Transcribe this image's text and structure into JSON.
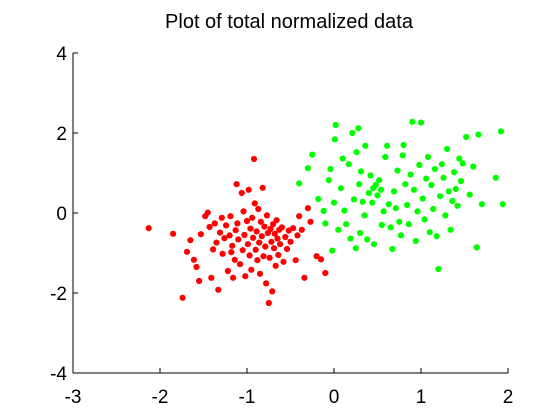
{
  "chart_data": {
    "type": "scatter",
    "title": "Plot of total normalized data",
    "xlabel": "",
    "ylabel": "",
    "xlim": [
      -3,
      2
    ],
    "ylim": [
      -4,
      4
    ],
    "x_ticks": [
      -3,
      -2,
      -1,
      0,
      1,
      2
    ],
    "y_ticks": [
      -4,
      -2,
      0,
      2,
      4
    ],
    "x_tick_labels": [
      "-3",
      "-2",
      "-1",
      "0",
      "1",
      "2"
    ],
    "y_tick_labels": [
      "-4",
      "-2",
      "0",
      "2",
      "4"
    ],
    "grid": false,
    "series": [
      {
        "color": "#ff0000",
        "points": [
          [
            -2.13,
            -0.38
          ],
          [
            -1.85,
            -0.52
          ],
          [
            -1.74,
            -2.12
          ],
          [
            -1.69,
            -0.97
          ],
          [
            -1.65,
            -0.68
          ],
          [
            -1.61,
            -1.17
          ],
          [
            -1.58,
            -1.35
          ],
          [
            -1.53,
            -0.53
          ],
          [
            -1.48,
            -0.08
          ],
          [
            -1.45,
            0.01
          ],
          [
            -1.43,
            -0.35
          ],
          [
            -1.41,
            -1.62
          ],
          [
            -1.39,
            -0.91
          ],
          [
            -1.37,
            -0.26
          ],
          [
            -1.35,
            -0.74
          ],
          [
            -1.33,
            -1.92
          ],
          [
            -1.31,
            -0.49
          ],
          [
            -1.29,
            -0.12
          ],
          [
            -1.28,
            -1.02
          ],
          [
            -1.26,
            -0.63
          ],
          [
            -1.24,
            -0.31
          ],
          [
            -1.22,
            -1.45
          ],
          [
            -1.2,
            -0.56
          ],
          [
            -1.19,
            -0.08
          ],
          [
            -1.17,
            -0.82
          ],
          [
            -1.16,
            -1.62
          ],
          [
            -1.14,
            -1.17
          ],
          [
            -1.13,
            -0.43
          ],
          [
            -1.12,
            0.72
          ],
          [
            -1.11,
            -0.26
          ],
          [
            -1.1,
            -0.66
          ],
          [
            -1.08,
            -1.28
          ],
          [
            -1.06,
            0.5
          ],
          [
            -1.05,
            -0.93
          ],
          [
            -1.04,
            0.04
          ],
          [
            -1.03,
            -0.55
          ],
          [
            -1.02,
            -1.58
          ],
          [
            -1.0,
            -0.2
          ],
          [
            -0.99,
            -0.78
          ],
          [
            -0.98,
            0.58
          ],
          [
            -0.97,
            -1.06
          ],
          [
            -0.96,
            -0.39
          ],
          [
            -0.95,
            -1.42
          ],
          [
            -0.94,
            -0.12
          ],
          [
            -0.93,
            -0.62
          ],
          [
            -0.92,
            1.35
          ],
          [
            -0.91,
            0.24
          ],
          [
            -0.9,
            -0.92
          ],
          [
            -0.89,
            -0.46
          ],
          [
            -0.88,
            -1.18
          ],
          [
            -0.87,
            0.1
          ],
          [
            -0.86,
            -0.74
          ],
          [
            -0.85,
            -1.52
          ],
          [
            -0.84,
            -0.22
          ],
          [
            -0.83,
            -0.58
          ],
          [
            -0.82,
            0.63
          ],
          [
            -0.81,
            -1.08
          ],
          [
            -0.8,
            -0.34
          ],
          [
            -0.79,
            -0.84
          ],
          [
            -0.78,
            -1.76
          ],
          [
            -0.77,
            -0.06
          ],
          [
            -0.76,
            -0.5
          ],
          [
            -0.75,
            -2.25
          ],
          [
            -0.74,
            -1.12
          ],
          [
            -0.73,
            -0.4
          ],
          [
            -0.72,
            -0.72
          ],
          [
            -0.71,
            -1.96
          ],
          [
            -0.7,
            -0.28
          ],
          [
            -0.69,
            -0.88
          ],
          [
            -0.68,
            -0.52
          ],
          [
            -0.67,
            -1.32
          ],
          [
            -0.66,
            -0.18
          ],
          [
            -0.65,
            -0.64
          ],
          [
            -0.64,
            -1.05
          ],
          [
            -0.63,
            -0.42
          ],
          [
            -0.62,
            -0.78
          ],
          [
            -0.6,
            -0.36
          ],
          [
            -0.58,
            -1.22
          ],
          [
            -0.56,
            -0.6
          ],
          [
            -0.54,
            -0.9
          ],
          [
            -0.52,
            -0.44
          ],
          [
            -0.5,
            -0.72
          ],
          [
            -0.47,
            -0.38
          ],
          [
            -0.44,
            -1.18
          ],
          [
            -0.42,
            -0.56
          ],
          [
            -0.4,
            -0.08
          ],
          [
            -0.37,
            -0.42
          ],
          [
            -0.34,
            -1.62
          ],
          [
            -0.3,
            0.12
          ],
          [
            -0.27,
            -0.22
          ],
          [
            -0.2,
            -1.08
          ],
          [
            -0.15,
            -1.16
          ],
          [
            -0.1,
            -1.5
          ],
          [
            -1.55,
            -1.7
          ],
          [
            -1.18,
            -0.98
          ]
        ]
      },
      {
        "color": "#00ff00",
        "points": [
          [
            -0.4,
            0.74
          ],
          [
            -0.3,
            1.12
          ],
          [
            -0.25,
            1.46
          ],
          [
            -0.18,
            0.35
          ],
          [
            -0.12,
            0.05
          ],
          [
            -0.1,
            -0.26
          ],
          [
            -0.06,
            0.82
          ],
          [
            -0.04,
            1.1
          ],
          [
            -0.02,
            -0.94
          ],
          [
            0.0,
            0.26
          ],
          [
            0.01,
            1.84
          ],
          [
            0.02,
            2.2
          ],
          [
            0.05,
            -0.42
          ],
          [
            0.08,
            0.62
          ],
          [
            0.1,
            1.36
          ],
          [
            0.12,
            0.06
          ],
          [
            0.14,
            -0.28
          ],
          [
            0.17,
            1.22
          ],
          [
            0.19,
            -0.64
          ],
          [
            0.21,
            2.0
          ],
          [
            0.23,
            0.34
          ],
          [
            0.25,
            -0.88
          ],
          [
            0.26,
            1.52
          ],
          [
            0.28,
            2.12
          ],
          [
            0.29,
            0.72
          ],
          [
            0.3,
            -0.5
          ],
          [
            0.31,
            1.04
          ],
          [
            0.33,
            0.28
          ],
          [
            0.35,
            -0.06
          ],
          [
            0.36,
            1.68
          ],
          [
            0.38,
            -0.66
          ],
          [
            0.4,
            0.5
          ],
          [
            0.42,
            0.94
          ],
          [
            0.44,
            0.26
          ],
          [
            0.45,
            0.62
          ],
          [
            0.46,
            -0.78
          ],
          [
            0.48,
            0.7
          ],
          [
            0.5,
            0.44
          ],
          [
            0.52,
            0.82
          ],
          [
            0.54,
            0.58
          ],
          [
            0.55,
            -0.3
          ],
          [
            0.57,
            0.04
          ],
          [
            0.59,
            1.4
          ],
          [
            0.61,
            1.68
          ],
          [
            0.63,
            0.22
          ],
          [
            0.65,
            -0.36
          ],
          [
            0.67,
            -0.9
          ],
          [
            0.69,
            0.54
          ],
          [
            0.71,
            0.12
          ],
          [
            0.73,
            1.06
          ],
          [
            0.75,
            -0.22
          ],
          [
            0.77,
            -0.56
          ],
          [
            0.79,
            1.44
          ],
          [
            0.8,
            1.7
          ],
          [
            0.82,
            0.72
          ],
          [
            0.84,
            0.2
          ],
          [
            0.86,
            -0.28
          ],
          [
            0.88,
            0.96
          ],
          [
            0.9,
            2.28
          ],
          [
            0.92,
            0.58
          ],
          [
            0.94,
            -0.7
          ],
          [
            0.96,
            0.04
          ],
          [
            0.98,
            1.2
          ],
          [
            1.0,
            2.26
          ],
          [
            1.02,
            0.36
          ],
          [
            1.04,
            -0.16
          ],
          [
            1.06,
            0.86
          ],
          [
            1.08,
            1.4
          ],
          [
            1.1,
            -0.48
          ],
          [
            1.12,
            0.7
          ],
          [
            1.14,
            0.1
          ],
          [
            1.16,
            1.1
          ],
          [
            1.18,
            -0.58
          ],
          [
            1.2,
            -1.4
          ],
          [
            1.22,
            0.42
          ],
          [
            1.24,
            1.22
          ],
          [
            1.26,
            0.88
          ],
          [
            1.28,
            -0.06
          ],
          [
            1.3,
            1.6
          ],
          [
            1.32,
            0.54
          ],
          [
            1.34,
            -0.42
          ],
          [
            1.36,
            0.3
          ],
          [
            1.38,
            1.02
          ],
          [
            1.4,
            0.6
          ],
          [
            1.42,
            0.18
          ],
          [
            1.44,
            1.36
          ],
          [
            1.46,
            0.8
          ],
          [
            1.48,
            1.24
          ],
          [
            1.52,
            1.9
          ],
          [
            1.56,
            0.46
          ],
          [
            1.6,
            1.16
          ],
          [
            1.64,
            -0.86
          ],
          [
            1.66,
            1.96
          ],
          [
            1.7,
            0.22
          ],
          [
            1.86,
            0.88
          ],
          [
            1.92,
            2.04
          ],
          [
            1.94,
            0.22
          ]
        ]
      }
    ]
  }
}
